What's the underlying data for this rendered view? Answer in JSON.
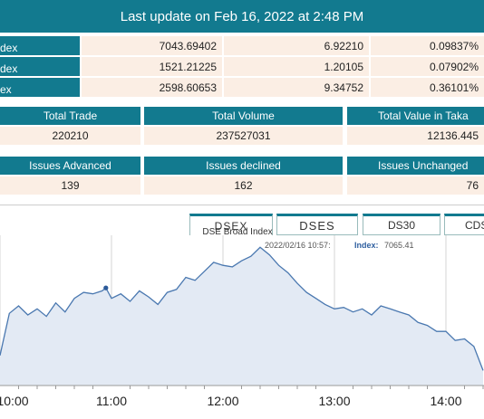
{
  "last_update": "Last update on Feb 16, 2022 at 2:48 PM",
  "indices": [
    {
      "name": "dex",
      "value": "7043.69402",
      "change": "6.92210",
      "percent": "0.09837%"
    },
    {
      "name": "dex",
      "value": "1521.21225",
      "change": "1.20105",
      "percent": "0.07902%"
    },
    {
      "name": "ex",
      "value": "2598.60653",
      "change": "9.34752",
      "percent": "0.36101%"
    }
  ],
  "trade_headers": [
    "Total Trade",
    "Total Volume",
    "Total Value in Taka"
  ],
  "trade_values": [
    "220210",
    "237527031",
    "12136.445"
  ],
  "issue_headers": [
    "Issues Advanced",
    "Issues declined",
    "Issues Unchanged"
  ],
  "issue_values": [
    "139",
    "162",
    "76"
  ],
  "tabs": [
    "DSEX",
    "DSES",
    "DS30",
    "CDSET"
  ],
  "colors": {
    "header": "#127a8f",
    "cell_bg": "#fbeee4",
    "line": "#4a78b0",
    "area": "#e3eaf4"
  },
  "chart_data": {
    "type": "area",
    "title": "DSE Broad Index",
    "tooltip": {
      "time": "2022/02/16 10:57:",
      "label": "Index:",
      "value": "7065.41"
    },
    "xticks": [
      "10:00",
      "11:00",
      "12:00",
      "13:00",
      "14:00"
    ],
    "series": [
      {
        "x": [
          "10:00",
          "10:05",
          "10:10",
          "10:15",
          "10:20",
          "10:25",
          "10:30",
          "10:35",
          "10:40",
          "10:45",
          "10:50",
          "10:55",
          "10:57",
          "11:00",
          "11:05",
          "11:10",
          "11:15",
          "11:20",
          "11:25",
          "11:30",
          "11:35",
          "11:40",
          "11:45",
          "11:50",
          "11:55",
          "12:00",
          "12:05",
          "12:10",
          "12:15",
          "12:20",
          "12:25",
          "12:30",
          "12:35",
          "12:40",
          "12:45",
          "12:50",
          "12:55",
          "13:00",
          "13:05",
          "13:10",
          "13:15",
          "13:20",
          "13:25",
          "13:30",
          "13:35",
          "13:40",
          "13:45",
          "13:50",
          "13:55",
          "14:00",
          "14:05",
          "14:10",
          "14:15",
          "14:20"
        ],
        "y": [
          7020,
          7048,
          7053,
          7047,
          7051,
          7046,
          7055,
          7049,
          7058,
          7062,
          7061,
          7063,
          7065,
          7058,
          7061,
          7056,
          7063,
          7059,
          7054,
          7062,
          7064,
          7072,
          7070,
          7076,
          7082,
          7080,
          7079,
          7083,
          7086,
          7092,
          7087,
          7080,
          7075,
          7068,
          7062,
          7058,
          7054,
          7051,
          7052,
          7049,
          7051,
          7047,
          7053,
          7051,
          7049,
          7047,
          7042,
          7040,
          7036,
          7036,
          7030,
          7031,
          7026,
          7010
        ]
      }
    ]
  }
}
